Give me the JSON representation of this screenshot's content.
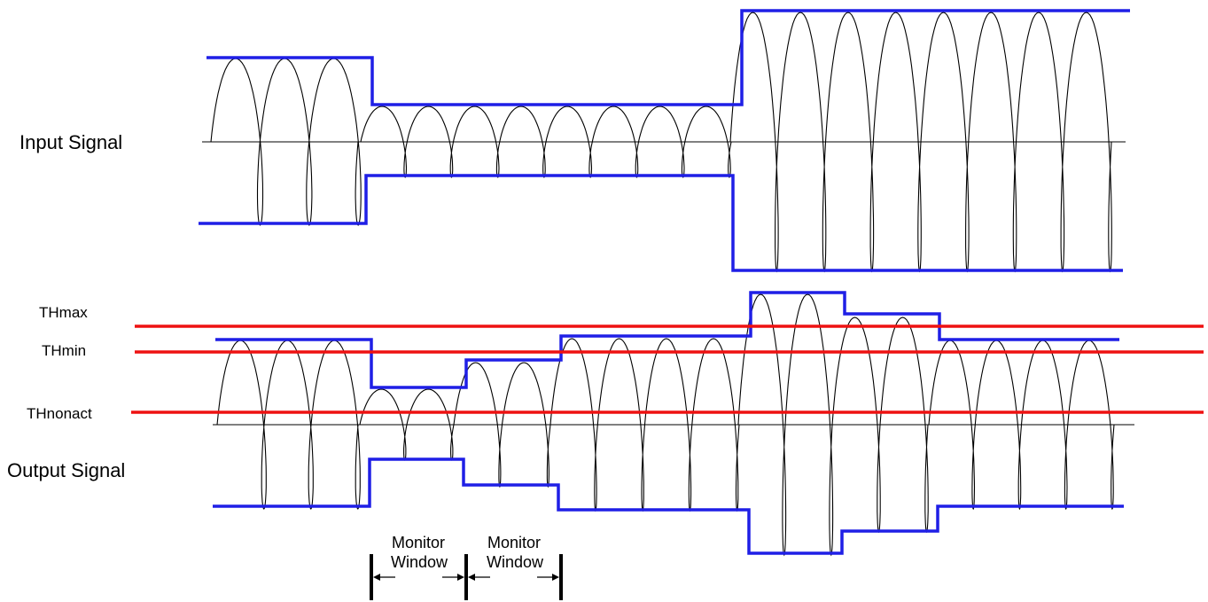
{
  "labels": {
    "input_signal": "Input Signal",
    "output_signal": "Output Signal",
    "th_max": "THmax",
    "th_min": "THmin",
    "th_nonact": "THnonact",
    "monitor_word": "Monitor",
    "window_word": "Window"
  },
  "colors": {
    "envelope": "#1f1fe6",
    "threshold": "#ee1111",
    "waveform": "#000000",
    "axis": "#000000",
    "marker": "#000000"
  }
}
